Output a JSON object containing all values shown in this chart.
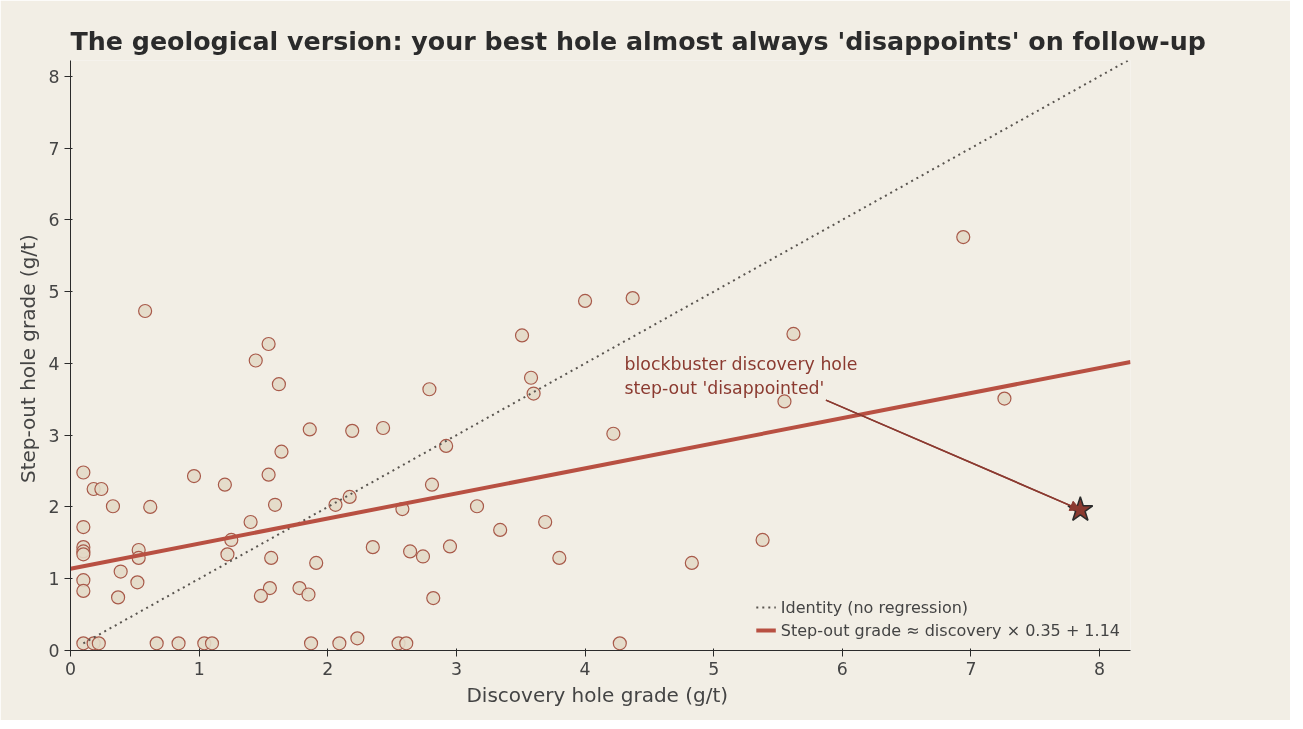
{
  "chart_data": {
    "type": "scatter",
    "title": "The geological version: your best hole almost always 'disappoints' on follow-up",
    "xlabel": "Discovery hole grade  (g/t)",
    "ylabel": "Step-out hole grade  (g/t)",
    "xlim": [
      0,
      8.24
    ],
    "ylim": [
      0,
      8.22
    ],
    "xticks": [
      0,
      1,
      2,
      3,
      4,
      5,
      6,
      7,
      8
    ],
    "yticks": [
      0,
      1,
      2,
      3,
      4,
      5,
      6,
      7,
      8
    ],
    "grid": false,
    "legend": "bottom right",
    "series": [
      {
        "marker": "circle",
        "color": "#e3d9c6",
        "x": [
          0.1,
          0.1,
          0.1,
          0.1,
          0.1,
          0.1,
          0.1,
          0.1,
          0.18,
          0.24,
          0.18,
          0.22,
          0.33,
          0.39,
          0.37,
          0.58,
          0.53,
          0.53,
          0.52,
          0.62,
          0.67,
          0.84,
          0.96,
          1.04,
          1.1,
          1.2,
          1.25,
          1.22,
          1.4,
          1.44,
          1.54,
          1.62,
          1.64,
          1.54,
          1.59,
          1.56,
          1.55,
          1.48,
          1.78,
          1.85,
          1.86,
          1.87,
          1.91,
          2.06,
          2.17,
          2.19,
          2.09,
          2.23,
          2.35,
          2.43,
          2.58,
          2.55,
          2.61,
          2.64,
          2.74,
          2.79,
          2.81,
          2.82,
          2.92,
          2.95,
          3.16,
          3.34,
          3.51,
          3.58,
          3.6,
          3.69,
          3.8,
          4.0,
          4.22,
          4.37,
          4.27,
          4.83,
          5.38,
          5.55,
          5.62,
          6.94,
          7.26
        ],
        "values": [
          2.48,
          1.72,
          1.44,
          1.38,
          1.34,
          0.98,
          0.83,
          0.1,
          2.25,
          2.25,
          0.1,
          0.1,
          2.01,
          1.1,
          0.74,
          4.73,
          1.4,
          1.29,
          0.95,
          2.0,
          0.1,
          0.1,
          2.43,
          0.1,
          0.1,
          2.31,
          1.54,
          1.34,
          1.79,
          4.04,
          4.27,
          3.71,
          2.77,
          2.45,
          2.03,
          1.29,
          0.87,
          0.76,
          0.87,
          0.78,
          3.08,
          0.1,
          1.22,
          2.03,
          2.14,
          3.06,
          0.1,
          0.17,
          1.44,
          3.1,
          1.97,
          0.1,
          0.1,
          1.38,
          1.31,
          3.64,
          2.31,
          0.73,
          2.85,
          1.45,
          2.01,
          1.68,
          4.39,
          3.8,
          3.58,
          1.79,
          1.29,
          4.87,
          3.02,
          4.91,
          0.1,
          1.22,
          1.54,
          3.47,
          4.41,
          5.76,
          3.51
        ]
      },
      {
        "marker": "star",
        "color": "#8b3a30",
        "x": [
          7.85
        ],
        "values": [
          1.96
        ]
      },
      {
        "type": "line",
        "name": "Identity (no regression)",
        "line_style": "dotted",
        "color": "#5a5550",
        "x": [
          0.1,
          8.22
        ],
        "values": [
          0.1,
          8.22
        ]
      },
      {
        "type": "line",
        "name": "Step-out grade ≈ discovery × 0.35 + 1.14",
        "line_style": "solid",
        "color": "#b85042",
        "x": [
          0,
          8.24
        ],
        "values": [
          1.14,
          4.02
        ]
      }
    ],
    "annotations": [
      {
        "text": "blockbuster discovery hole\nstep-out 'disappointed'",
        "x": 7.85,
        "y": 1.96
      }
    ]
  }
}
